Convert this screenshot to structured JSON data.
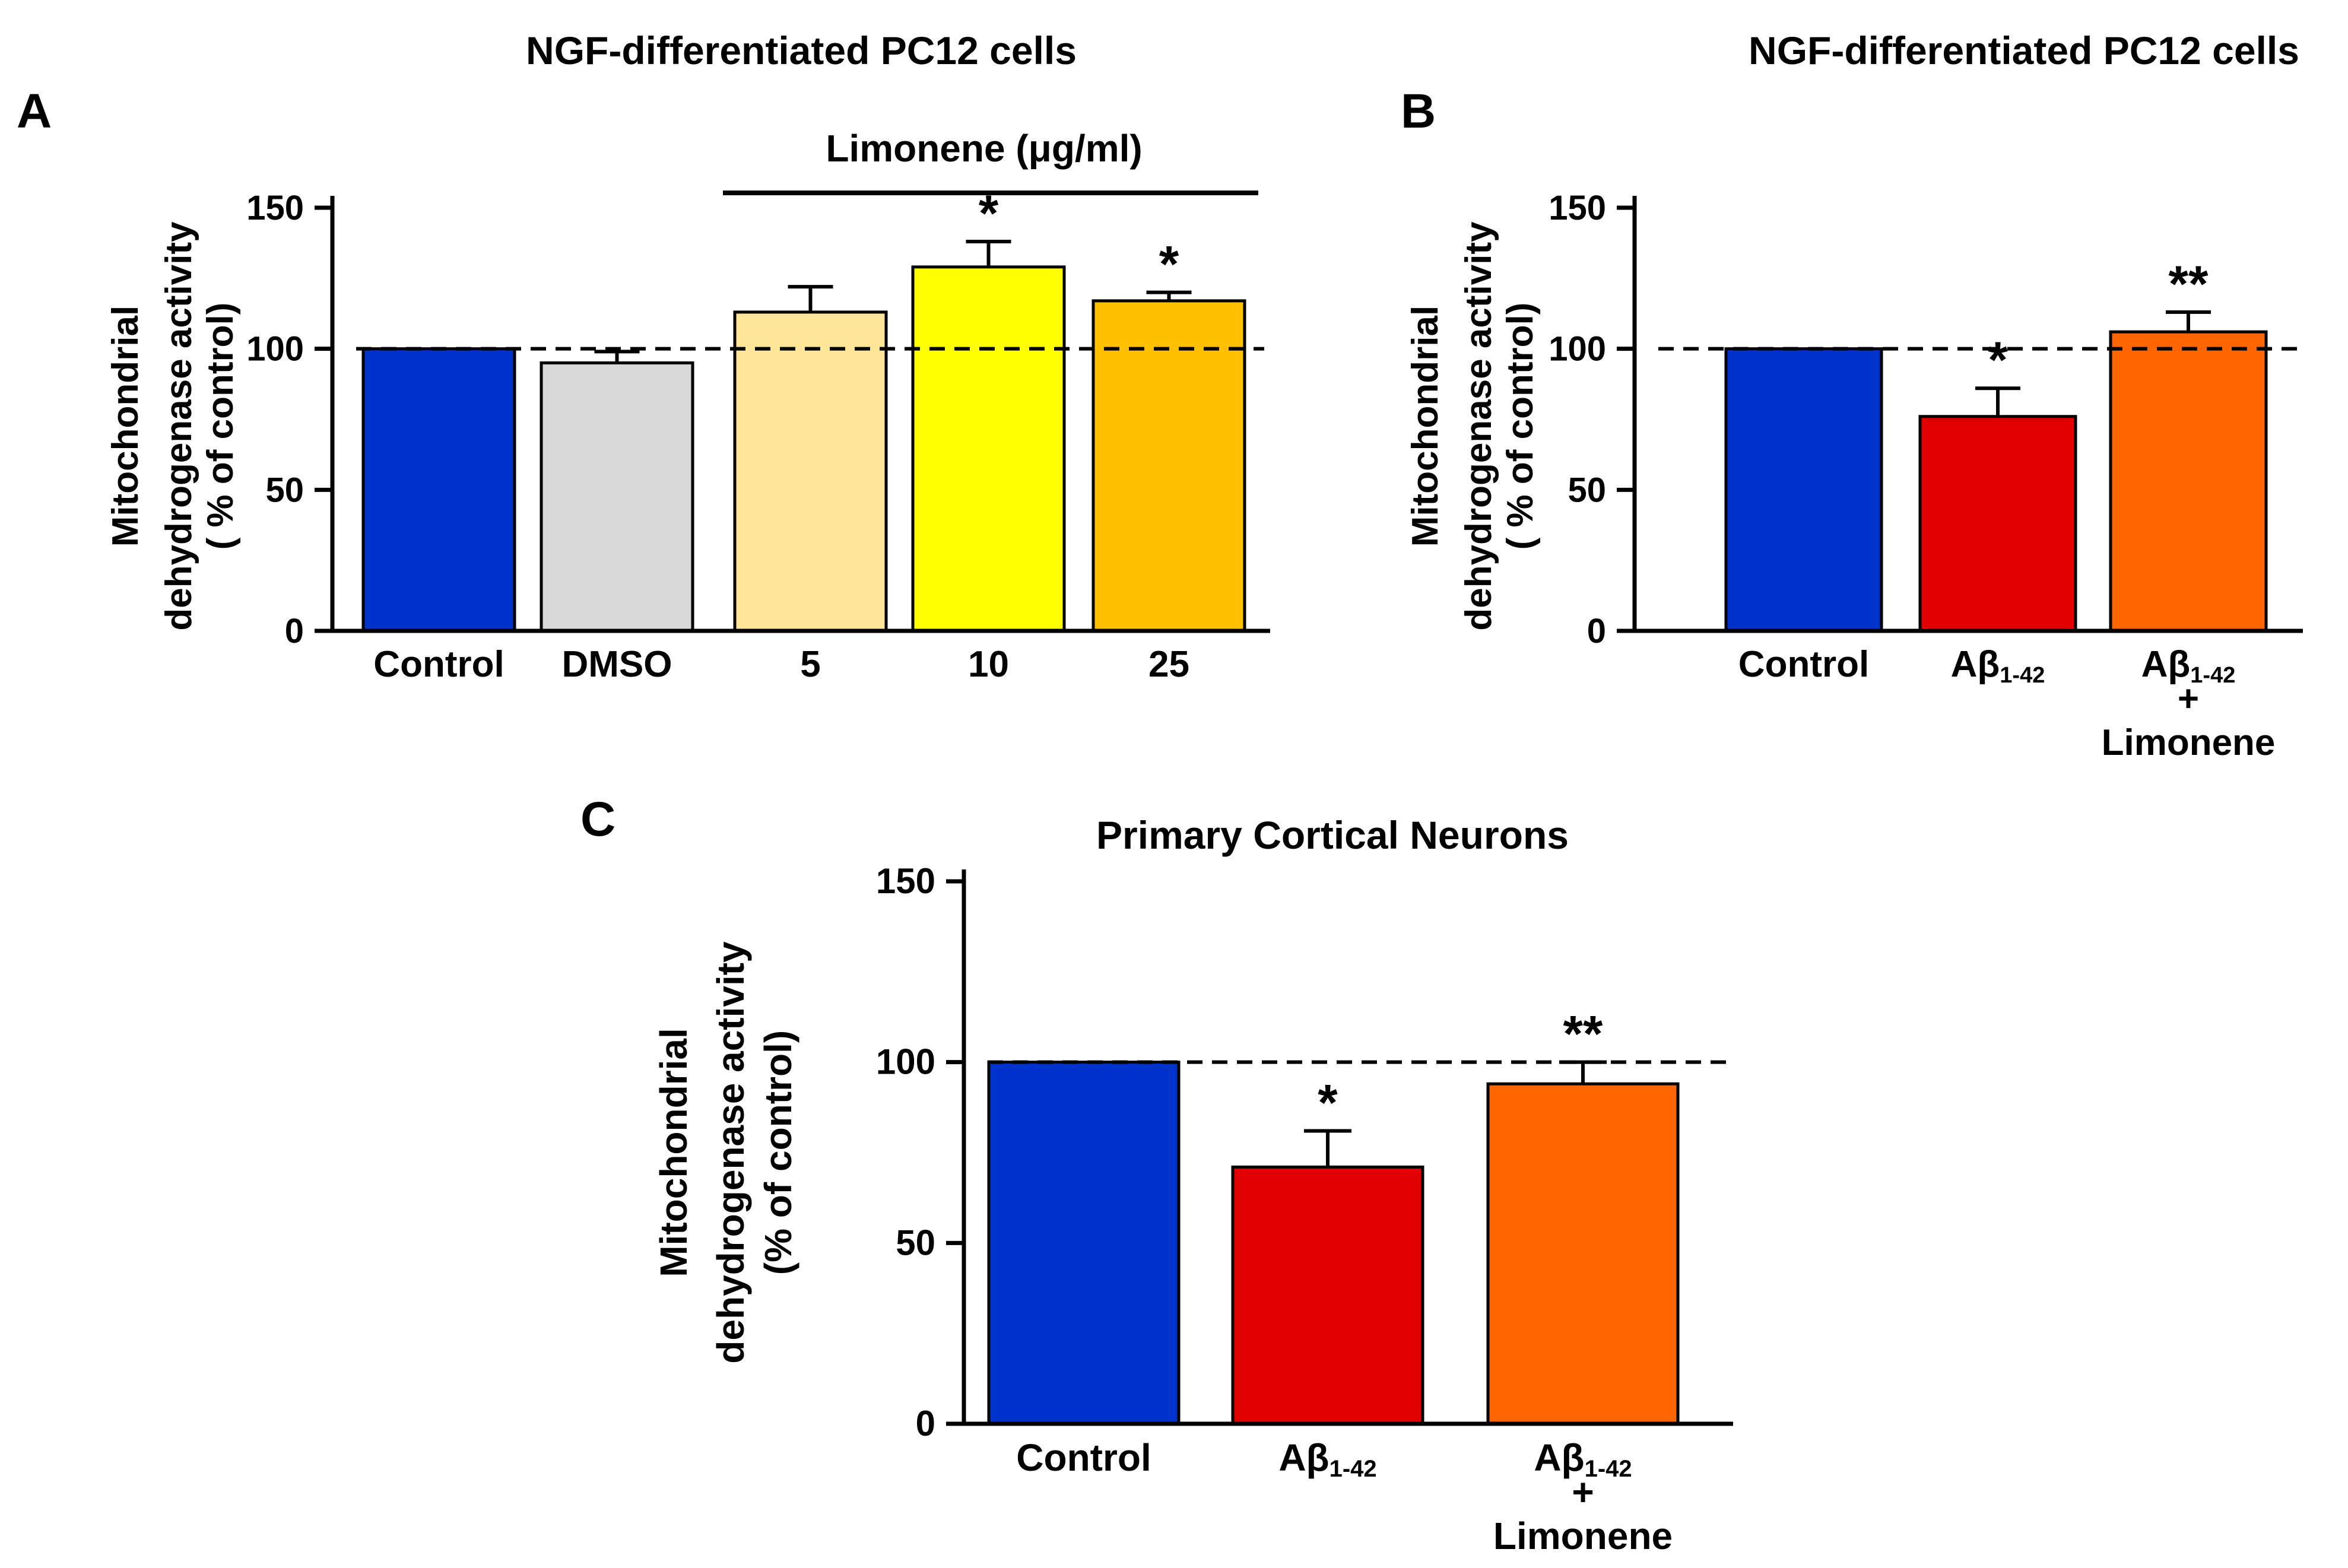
{
  "chart_data": [
    {
      "panel": "A",
      "type": "bar",
      "title": "NGF-differentiated PC12 cells",
      "ylabel_lines": [
        "Mitochondrial",
        "dehydrogenase activity",
        "( % of control)"
      ],
      "ylim": [
        0,
        150
      ],
      "yticks": [
        0,
        50,
        100,
        150
      ],
      "reference_line": 100,
      "group_label": "Limonene (μg/ml)",
      "bars": [
        {
          "label": "Control",
          "value": 100,
          "error": 0,
          "color": "#0033CC",
          "sig": ""
        },
        {
          "label": "DMSO",
          "value": 95,
          "error": 4,
          "color": "#D9D9D9",
          "sig": ""
        },
        {
          "label": "5",
          "value": 113,
          "error": 9,
          "color": "#FFE699",
          "sig": ""
        },
        {
          "label": "10",
          "value": 129,
          "error": 9,
          "color": "#FFFF00",
          "sig": "*"
        },
        {
          "label": "25",
          "value": 117,
          "error": 3,
          "color": "#FFC000",
          "sig": "*"
        }
      ]
    },
    {
      "panel": "B",
      "type": "bar",
      "title": "NGF-differentiated PC12 cells",
      "ylabel_lines": [
        "Mitochondrial",
        "dehydrogenase activity",
        "( % of control)"
      ],
      "ylim": [
        0,
        150
      ],
      "yticks": [
        0,
        50,
        100,
        150
      ],
      "reference_line": 100,
      "bars": [
        {
          "label_main": "Control",
          "label_sub": "",
          "label_extra": [],
          "value": 100,
          "error": 0,
          "color": "#0033CC",
          "sig": ""
        },
        {
          "label_main": "Aβ",
          "label_sub": "1-42",
          "label_extra": [],
          "value": 76,
          "error": 10,
          "color": "#E00000",
          "sig": "*"
        },
        {
          "label_main": "Aβ",
          "label_sub": "1-42",
          "label_extra": [
            "+",
            "Limonene"
          ],
          "value": 106,
          "error": 7,
          "color": "#FF6600",
          "sig": "**"
        }
      ]
    },
    {
      "panel": "C",
      "type": "bar",
      "title": "Primary Cortical Neurons",
      "ylabel_lines": [
        "Mitochondrial",
        "dehydrogenase activity",
        "(% of control)"
      ],
      "ylim": [
        0,
        150
      ],
      "yticks": [
        0,
        50,
        100,
        150
      ],
      "reference_line": 100,
      "bars": [
        {
          "label_main": "Control",
          "label_sub": "",
          "label_extra": [],
          "value": 100,
          "error": 0,
          "color": "#0033CC",
          "sig": ""
        },
        {
          "label_main": "Aβ",
          "label_sub": "1-42",
          "label_extra": [],
          "value": 71,
          "error": 10,
          "color": "#E00000",
          "sig": "*"
        },
        {
          "label_main": "Aβ",
          "label_sub": "1-42",
          "label_extra": [
            "+",
            "Limonene"
          ],
          "value": 94,
          "error": 6,
          "color": "#FF6600",
          "sig": "**"
        }
      ]
    }
  ]
}
